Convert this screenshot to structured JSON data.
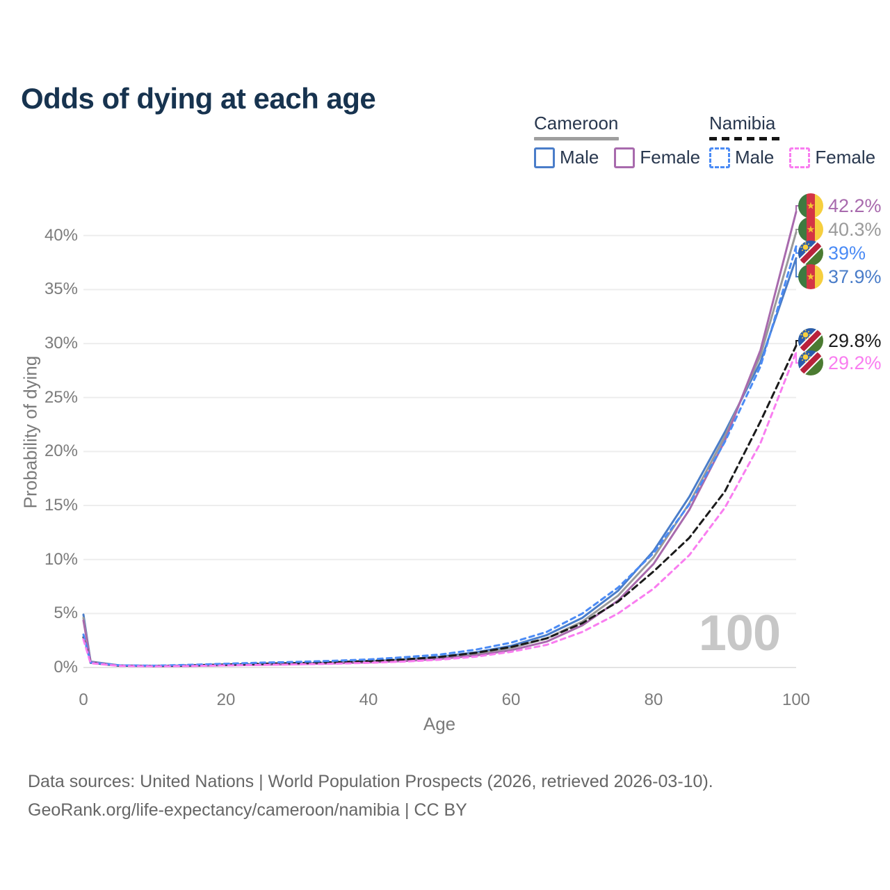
{
  "title": "Odds of dying at each age",
  "watermark": "100",
  "legend": {
    "groups": [
      {
        "country": "Cameroon",
        "line_style": "solid",
        "underline_color": "#9e9e9e",
        "items": [
          {
            "label": "Male",
            "color": "#4a7dc9",
            "dashed": false
          },
          {
            "label": "Female",
            "color": "#a86aad",
            "dashed": false
          }
        ]
      },
      {
        "country": "Namibia",
        "line_style": "dashed",
        "underline_color": "#151515",
        "items": [
          {
            "label": "Male",
            "color": "#4b8bf5",
            "dashed": true
          },
          {
            "label": "Female",
            "color": "#f97df0",
            "dashed": true
          }
        ]
      }
    ]
  },
  "axes": {
    "x": {
      "label": "Age",
      "ticks": [
        0,
        20,
        40,
        60,
        80,
        100
      ],
      "range": [
        0,
        100
      ]
    },
    "y": {
      "label": "Probability of dying",
      "tick_labels": [
        "0%",
        "5%",
        "10%",
        "15%",
        "20%",
        "25%",
        "30%",
        "35%",
        "40%"
      ],
      "tick_values": [
        0,
        5,
        10,
        15,
        20,
        25,
        30,
        35,
        40
      ],
      "range": [
        0,
        43
      ]
    }
  },
  "chart_data": {
    "type": "line",
    "title": "Odds of dying at each age",
    "xlabel": "Age",
    "ylabel": "Probability of dying",
    "x": [
      0,
      1,
      5,
      10,
      15,
      20,
      25,
      30,
      35,
      40,
      45,
      50,
      55,
      60,
      65,
      70,
      75,
      80,
      85,
      90,
      95,
      100
    ],
    "series": [
      {
        "name": "Cameroon Male",
        "country": "cameroon",
        "sex": "male",
        "color": "#4a7dc9",
        "dash": "none",
        "values": [
          4.9,
          0.55,
          0.2,
          0.15,
          0.2,
          0.27,
          0.32,
          0.38,
          0.46,
          0.58,
          0.75,
          1.0,
          1.4,
          2.0,
          3.0,
          4.6,
          7.1,
          10.8,
          15.8,
          21.8,
          28.3,
          37.9
        ],
        "end_label": "37.9%"
      },
      {
        "name": "Cameroon Female",
        "country": "cameroon",
        "sex": "female",
        "color": "#a86aad",
        "dash": "none",
        "values": [
          4.35,
          0.5,
          0.17,
          0.12,
          0.15,
          0.2,
          0.25,
          0.3,
          0.38,
          0.47,
          0.6,
          0.8,
          1.1,
          1.6,
          2.4,
          3.9,
          6.2,
          9.6,
          14.6,
          21.0,
          29.4,
          42.2
        ],
        "end_label": "42.2%"
      },
      {
        "name": "Cameroon Both",
        "country": "cameroon",
        "sex": "both",
        "color": "#9a9a9a",
        "dash": "none",
        "values": [
          4.6,
          0.52,
          0.18,
          0.13,
          0.17,
          0.23,
          0.28,
          0.34,
          0.42,
          0.52,
          0.67,
          0.9,
          1.25,
          1.8,
          2.7,
          4.25,
          6.65,
          10.2,
          15.2,
          21.4,
          28.9,
          40.3
        ],
        "end_label": "40.3%"
      },
      {
        "name": "Namibia Male",
        "country": "namibia",
        "sex": "male",
        "color": "#4b8bf5",
        "dash": "7 6",
        "values": [
          3.05,
          0.45,
          0.2,
          0.17,
          0.25,
          0.35,
          0.45,
          0.52,
          0.62,
          0.75,
          0.95,
          1.2,
          1.65,
          2.3,
          3.3,
          5.0,
          7.4,
          10.6,
          15.1,
          20.9,
          27.9,
          39.0
        ],
        "end_label": "39%"
      },
      {
        "name": "Namibia Female",
        "country": "namibia",
        "sex": "female",
        "color": "#f97df0",
        "dash": "7 6",
        "values": [
          2.6,
          0.4,
          0.15,
          0.11,
          0.14,
          0.19,
          0.24,
          0.29,
          0.35,
          0.43,
          0.55,
          0.72,
          1.0,
          1.45,
          2.1,
          3.3,
          5.0,
          7.3,
          10.4,
          14.8,
          20.8,
          29.2
        ],
        "end_label": "29.2%"
      },
      {
        "name": "Namibia Both",
        "country": "namibia",
        "sex": "both",
        "color": "#1b1b1b",
        "dash": "9 6",
        "values": [
          2.8,
          0.43,
          0.17,
          0.14,
          0.2,
          0.27,
          0.35,
          0.41,
          0.49,
          0.6,
          0.75,
          0.97,
          1.35,
          1.9,
          2.7,
          4.1,
          6.1,
          8.9,
          12.0,
          16.3,
          22.8,
          29.8
        ],
        "end_label": "29.8%"
      }
    ]
  },
  "flag_colors": {
    "cameroon": {
      "green": "#3e7a40",
      "red": "#d43545",
      "yellow": "#f6cf3f",
      "star": "#f5c531"
    },
    "namibia": {
      "blue": "#2a5cad",
      "white": "#ffffff",
      "red": "#b9223c",
      "green": "#4b7b31",
      "sun": "#f8d03e"
    }
  },
  "source": {
    "line1": "Data sources: United Nations | World Population Prospects (2026, retrieved 2026-03-10).",
    "line2": "GeoRank.org/life-expectancy/cameroon/namibia | CC BY"
  }
}
